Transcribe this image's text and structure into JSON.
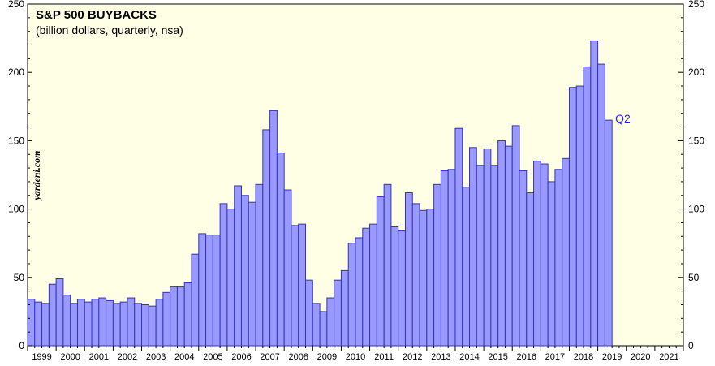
{
  "chart_data": {
    "type": "bar",
    "title": "S&P 500 BUYBACKS",
    "subtitle": "(billion dollars, quarterly, nsa)",
    "watermark": "yardeni.com",
    "annotation": "Q2",
    "ylim": [
      0,
      250
    ],
    "yticks": [
      0,
      50,
      100,
      150,
      200,
      250
    ],
    "years": [
      "1999",
      "2000",
      "2001",
      "2002",
      "2003",
      "2004",
      "2005",
      "2006",
      "2007",
      "2008",
      "2009",
      "2010",
      "2011",
      "2012",
      "2013",
      "2014",
      "2015",
      "2016",
      "2017",
      "2018",
      "2019",
      "2020",
      "2021"
    ],
    "quarters_per_year": 4,
    "values": [
      34,
      32,
      31,
      45,
      49,
      37,
      31,
      34,
      32,
      34,
      35,
      33,
      31,
      32,
      35,
      31,
      30,
      29,
      34,
      39,
      43,
      43,
      46,
      67,
      82,
      81,
      81,
      104,
      100,
      117,
      110,
      105,
      118,
      158,
      172,
      141,
      114,
      88,
      89,
      48,
      31,
      25,
      35,
      48,
      55,
      75,
      79,
      86,
      89,
      109,
      118,
      87,
      84,
      112,
      104,
      99,
      100,
      118,
      128,
      129,
      159,
      116,
      145,
      132,
      144,
      132,
      150,
      146,
      161,
      128,
      112,
      135,
      133,
      120,
      129,
      137,
      189,
      190,
      204,
      223,
      206,
      165
    ],
    "colors": {
      "bar_fill": "#9999ff",
      "bar_stroke": "#3333bb",
      "plot_bg": "#ffffe5",
      "annotation": "#2b2bd6"
    }
  }
}
